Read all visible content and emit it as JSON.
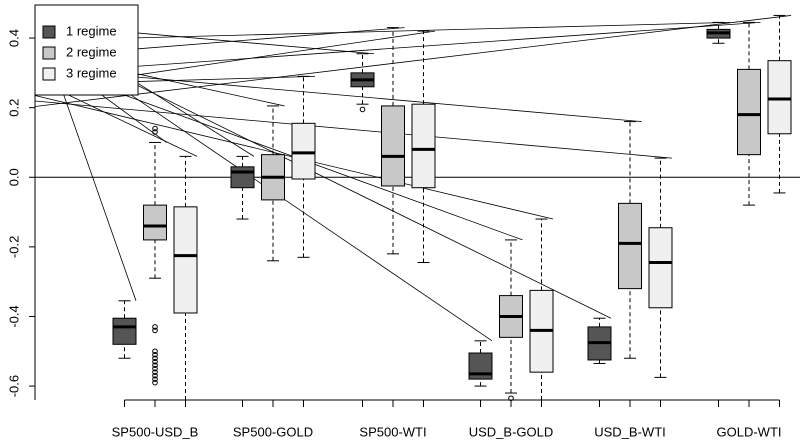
{
  "chart_data": {
    "type": "boxplot",
    "categories": [
      "SP500-USD_B",
      "SP500-GOLD",
      "SP500-WTI",
      "USD_B-GOLD",
      "USD_B-WTI",
      "GOLD-WTI"
    ],
    "series": [
      {
        "name": "1 regime",
        "color": "#555555",
        "low": [
          -0.52,
          -0.12,
          0.21,
          -0.6,
          -0.535,
          0.385
        ],
        "q1": [
          -0.48,
          -0.03,
          0.26,
          -0.58,
          -0.525,
          0.4
        ],
        "median": [
          -0.43,
          0.015,
          0.28,
          -0.565,
          -0.475,
          0.415
        ],
        "q3": [
          -0.405,
          0.03,
          0.3,
          -0.505,
          -0.43,
          0.425
        ],
        "high": [
          -0.355,
          0.06,
          0.355,
          -0.47,
          -0.405,
          0.445
        ],
        "outliers": [
          [],
          [],
          [
            0.195
          ],
          [],
          [],
          []
        ]
      },
      {
        "name": "2 regime",
        "color": "#c8c8c8",
        "low": [
          -0.29,
          -0.24,
          -0.22,
          -0.62,
          -0.52,
          -0.08
        ],
        "q1": [
          -0.18,
          -0.065,
          -0.025,
          -0.46,
          -0.32,
          0.065
        ],
        "median": [
          -0.14,
          0.0,
          0.06,
          -0.4,
          -0.19,
          0.18
        ],
        "q3": [
          -0.08,
          0.065,
          0.205,
          -0.34,
          -0.075,
          0.31
        ],
        "high": [
          0.1,
          0.205,
          0.43,
          -0.18,
          0.16,
          0.445
        ],
        "outliers": [
          [
            0.13,
            0.14,
            -0.43,
            -0.44,
            -0.5,
            -0.51,
            -0.52,
            -0.53,
            -0.54,
            -0.55,
            -0.56,
            -0.57,
            -0.58,
            -0.59
          ],
          [],
          [],
          [
            -0.635
          ],
          [],
          []
        ]
      },
      {
        "name": "3 regime",
        "color": "#f0f0f0",
        "low": [
          -0.64,
          -0.23,
          -0.245,
          -0.64,
          -0.575,
          -0.045
        ],
        "q1": [
          -0.39,
          -0.005,
          -0.03,
          -0.56,
          -0.375,
          0.125
        ],
        "median": [
          -0.225,
          0.07,
          0.08,
          -0.44,
          -0.245,
          0.225
        ],
        "q3": [
          -0.085,
          0.155,
          0.21,
          -0.325,
          -0.145,
          0.335
        ],
        "high": [
          0.06,
          0.29,
          0.42,
          -0.12,
          0.055,
          0.465
        ],
        "outliers": [
          [],
          [],
          [],
          [],
          [],
          []
        ]
      }
    ],
    "ylim": [
      -0.64,
      0.495
    ],
    "yticks": [
      -0.6,
      -0.4,
      -0.2,
      {
        "value": 0,
        "label": "0.0"
      },
      0.2,
      0.4
    ],
    "legend": "top-left"
  }
}
